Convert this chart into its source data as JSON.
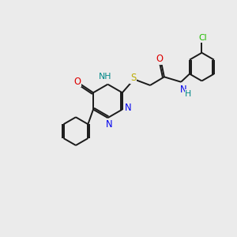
{
  "bg_color": "#ebebeb",
  "bond_color": "#1a1a1a",
  "bond_lw": 1.4,
  "fs": 7.8,
  "colors": {
    "N": "#0000ee",
    "O": "#dd0000",
    "S": "#bbaa00",
    "Cl": "#22bb00",
    "NH": "#008888",
    "C": "#1a1a1a"
  },
  "xlim": [
    -1.8,
    5.2
  ],
  "ylim": [
    -2.6,
    2.0
  ]
}
